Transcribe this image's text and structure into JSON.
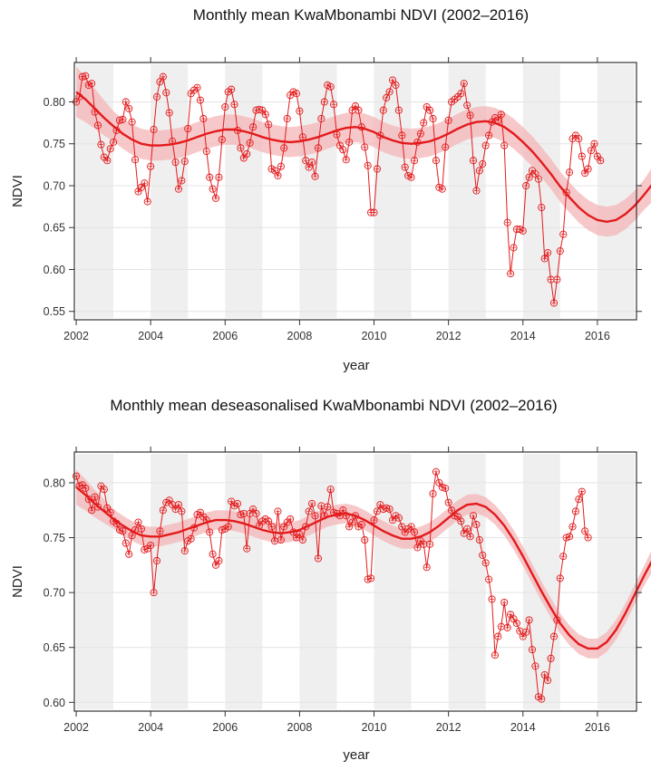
{
  "figure": {
    "panels": [
      "raw",
      "deseasonalised"
    ]
  },
  "chart_data": [
    {
      "type": "line",
      "id": "raw",
      "title": "Monthly mean KwaMbonambi NDVI (2002–2016)",
      "xlabel": "year",
      "ylabel": "NDVI",
      "xlim": [
        2001.95,
        2017.05
      ],
      "ylim": [
        0.54,
        0.847
      ],
      "xticks": [
        2002,
        2004,
        2006,
        2008,
        2010,
        2012,
        2014,
        2016
      ],
      "xtick_labels": [
        "2002",
        "2004",
        "2006",
        "2008",
        "2010",
        "2012",
        "2014",
        "2016"
      ],
      "yticks": [
        0.55,
        0.6,
        0.65,
        0.7,
        0.75,
        0.8
      ],
      "ytick_labels": [
        "0.55",
        "0.60",
        "0.65",
        "0.70",
        "0.75",
        "0.80"
      ],
      "grid": true,
      "shaded_year_bands": [
        2002,
        2004,
        2006,
        2008,
        2010,
        2012,
        2014,
        2016
      ],
      "colors": {
        "series": "#e31a1c",
        "band": "#f4b6b8",
        "shade": "#efefef",
        "grid": "#e4e4e4"
      },
      "series": [
        {
          "name": "monthly mean NDVI",
          "start": 2002.0,
          "step": 0.08333,
          "values": [
            0.8,
            0.806,
            0.83,
            0.831,
            0.82,
            0.822,
            0.788,
            0.772,
            0.749,
            0.734,
            0.73,
            0.744,
            0.752,
            0.766,
            0.778,
            0.779,
            0.8,
            0.792,
            0.776,
            0.731,
            0.693,
            0.698,
            0.703,
            0.681,
            0.723,
            0.767,
            0.806,
            0.824,
            0.83,
            0.811,
            0.787,
            0.753,
            0.728,
            0.696,
            0.706,
            0.729,
            0.768,
            0.81,
            0.814,
            0.817,
            0.802,
            0.78,
            0.741,
            0.71,
            0.696,
            0.685,
            0.71,
            0.755,
            0.794,
            0.812,
            0.815,
            0.797,
            0.766,
            0.745,
            0.733,
            0.738,
            0.751,
            0.77,
            0.79,
            0.791,
            0.79,
            0.785,
            0.773,
            0.72,
            0.718,
            0.712,
            0.723,
            0.745,
            0.78,
            0.808,
            0.812,
            0.81,
            0.789,
            0.758,
            0.73,
            0.722,
            0.728,
            0.711,
            0.745,
            0.78,
            0.8,
            0.82,
            0.818,
            0.797,
            0.761,
            0.748,
            0.743,
            0.731,
            0.752,
            0.79,
            0.795,
            0.79,
            0.77,
            0.746,
            0.724,
            0.668,
            0.668,
            0.72,
            0.76,
            0.79,
            0.805,
            0.812,
            0.826,
            0.82,
            0.79,
            0.76,
            0.722,
            0.712,
            0.71,
            0.73,
            0.752,
            0.762,
            0.775,
            0.794,
            0.79,
            0.78,
            0.73,
            0.698,
            0.696,
            0.746,
            0.778,
            0.8,
            0.803,
            0.806,
            0.81,
            0.822,
            0.796,
            0.784,
            0.73,
            0.694,
            0.718,
            0.726,
            0.748,
            0.76,
            0.776,
            0.781,
            0.778,
            0.785,
            0.748,
            0.656,
            0.595,
            0.626,
            0.648,
            0.648,
            0.646,
            0.7,
            0.71,
            0.718,
            0.714,
            0.708,
            0.674,
            0.613,
            0.62,
            0.588,
            0.56,
            0.588,
            0.622,
            0.642,
            0.692,
            0.716,
            0.756,
            0.76,
            0.756,
            0.735,
            0.715,
            0.72,
            0.742,
            0.75,
            0.735,
            0.73
          ],
          "marker": "circle-cross"
        },
        {
          "name": "smooth trend",
          "start": 2002.0,
          "step": 0.25,
          "values": [
            0.812,
            0.803,
            0.792,
            0.781,
            0.771,
            0.762,
            0.755,
            0.75,
            0.748,
            0.748,
            0.749,
            0.751,
            0.754,
            0.758,
            0.762,
            0.765,
            0.767,
            0.767,
            0.765,
            0.762,
            0.758,
            0.755,
            0.753,
            0.752,
            0.753,
            0.755,
            0.758,
            0.762,
            0.766,
            0.769,
            0.77,
            0.768,
            0.764,
            0.758,
            0.754,
            0.751,
            0.75,
            0.751,
            0.753,
            0.757,
            0.762,
            0.768,
            0.773,
            0.776,
            0.777,
            0.775,
            0.77,
            0.762,
            0.752,
            0.741,
            0.728,
            0.714,
            0.699,
            0.686,
            0.674,
            0.665,
            0.659,
            0.657,
            0.659,
            0.666,
            0.676,
            0.689,
            0.703,
            0.717,
            0.729,
            0.738
          ],
          "ci_halfwidth": 0.018,
          "ci_halfwidth_ends": 0.03
        }
      ]
    },
    {
      "type": "line",
      "id": "deseasonalised",
      "title": "Monthly mean deseasonalised KwaMbonambi NDVI (2002–2016)",
      "xlabel": "year",
      "ylabel": "NDVI",
      "xlim": [
        2001.95,
        2017.05
      ],
      "ylim": [
        0.592,
        0.828
      ],
      "xticks": [
        2002,
        2004,
        2006,
        2008,
        2010,
        2012,
        2014,
        2016
      ],
      "xtick_labels": [
        "2002",
        "2004",
        "2006",
        "2008",
        "2010",
        "2012",
        "2014",
        "2016"
      ],
      "yticks": [
        0.6,
        0.65,
        0.7,
        0.75,
        0.8
      ],
      "ytick_labels": [
        "0.60",
        "0.65",
        "0.70",
        "0.75",
        "0.80"
      ],
      "grid": true,
      "shaded_year_bands": [
        2002,
        2004,
        2006,
        2008,
        2010,
        2012,
        2014,
        2016
      ],
      "colors": {
        "series": "#e31a1c",
        "band": "#f4b6b8",
        "shade": "#efefef",
        "grid": "#e4e4e4"
      },
      "series": [
        {
          "name": "deseasonalised NDVI",
          "start": 2002.0,
          "step": 0.08333,
          "values": [
            0.806,
            0.797,
            0.798,
            0.795,
            0.785,
            0.775,
            0.787,
            0.778,
            0.797,
            0.794,
            0.777,
            0.773,
            0.765,
            0.763,
            0.757,
            0.756,
            0.745,
            0.735,
            0.752,
            0.757,
            0.764,
            0.758,
            0.739,
            0.74,
            0.743,
            0.7,
            0.729,
            0.756,
            0.775,
            0.782,
            0.784,
            0.78,
            0.776,
            0.78,
            0.774,
            0.738,
            0.747,
            0.749,
            0.759,
            0.771,
            0.773,
            0.769,
            0.766,
            0.755,
            0.735,
            0.725,
            0.729,
            0.757,
            0.758,
            0.76,
            0.783,
            0.779,
            0.781,
            0.771,
            0.772,
            0.74,
            0.772,
            0.776,
            0.772,
            0.761,
            0.765,
            0.767,
            0.765,
            0.76,
            0.747,
            0.774,
            0.748,
            0.76,
            0.764,
            0.767,
            0.755,
            0.75,
            0.753,
            0.748,
            0.76,
            0.774,
            0.781,
            0.77,
            0.731,
            0.779,
            0.77,
            0.778,
            0.794,
            0.773,
            0.772,
            0.77,
            0.775,
            0.77,
            0.76,
            0.764,
            0.77,
            0.76,
            0.762,
            0.748,
            0.712,
            0.713,
            0.766,
            0.774,
            0.78,
            0.776,
            0.777,
            0.776,
            0.766,
            0.77,
            0.768,
            0.76,
            0.755,
            0.758,
            0.76,
            0.755,
            0.741,
            0.747,
            0.744,
            0.723,
            0.744,
            0.79,
            0.81,
            0.8,
            0.796,
            0.795,
            0.782,
            0.775,
            0.77,
            0.769,
            0.765,
            0.754,
            0.758,
            0.751,
            0.77,
            0.762,
            0.748,
            0.734,
            0.727,
            0.712,
            0.694,
            0.643,
            0.66,
            0.669,
            0.691,
            0.668,
            0.68,
            0.676,
            0.672,
            0.665,
            0.66,
            0.664,
            0.675,
            0.648,
            0.633,
            0.605,
            0.603,
            0.625,
            0.62,
            0.64,
            0.66,
            0.675,
            0.713,
            0.733,
            0.75,
            0.751,
            0.76,
            0.774,
            0.785,
            0.792,
            0.756,
            0.75
          ],
          "marker": "circle-cross"
        },
        {
          "name": "smooth trend",
          "start": 2002.0,
          "step": 0.25,
          "values": [
            0.796,
            0.789,
            0.781,
            0.774,
            0.767,
            0.761,
            0.756,
            0.752,
            0.751,
            0.751,
            0.753,
            0.755,
            0.758,
            0.761,
            0.764,
            0.766,
            0.766,
            0.765,
            0.763,
            0.76,
            0.757,
            0.755,
            0.754,
            0.755,
            0.757,
            0.761,
            0.765,
            0.769,
            0.771,
            0.772,
            0.77,
            0.766,
            0.761,
            0.756,
            0.752,
            0.749,
            0.749,
            0.751,
            0.755,
            0.761,
            0.768,
            0.775,
            0.78,
            0.781,
            0.778,
            0.771,
            0.761,
            0.748,
            0.733,
            0.717,
            0.701,
            0.686,
            0.672,
            0.661,
            0.653,
            0.649,
            0.649,
            0.655,
            0.666,
            0.681,
            0.698,
            0.715,
            0.731,
            0.746,
            0.757,
            0.764
          ],
          "ci_halfwidth": 0.009,
          "ci_halfwidth_ends": 0.016
        }
      ]
    }
  ]
}
